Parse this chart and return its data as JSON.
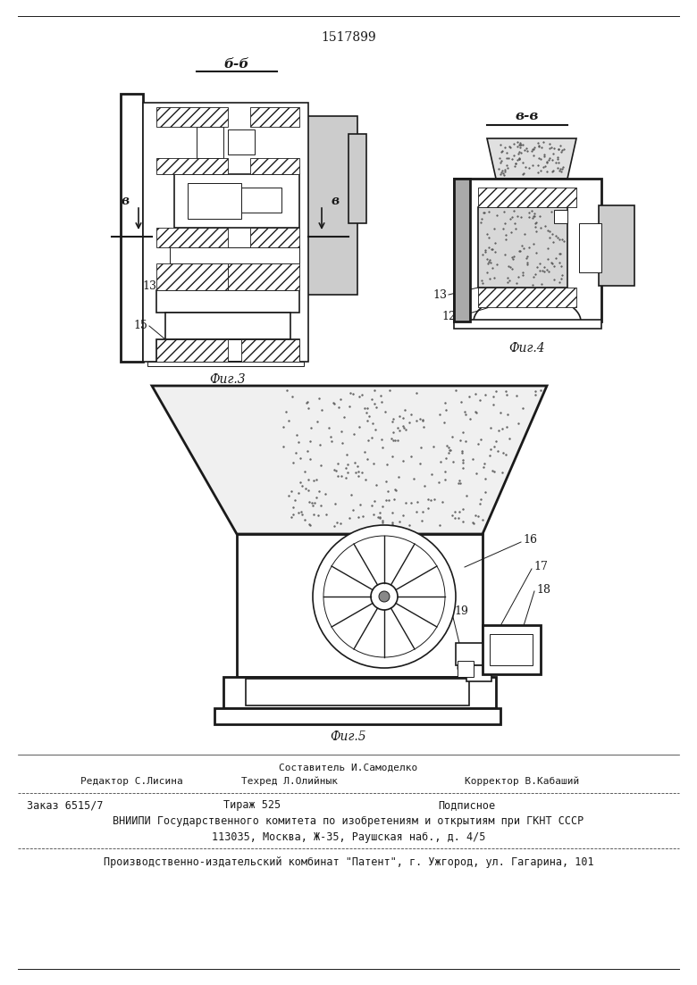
{
  "patent_number": "1517899",
  "fig3_label": "Фиг.3",
  "fig4_label": "Фиг.4",
  "fig5_label": "Фиг.5",
  "section_bb": "б-б",
  "section_vv": "в-в",
  "label_b": "в",
  "footer_line1": "Составитель И.Самоделко",
  "footer_line2_left": "Редактор С.Лисина",
  "footer_line2_mid": "Техред Л.Олийнык",
  "footer_line2_right": "Корректор В.Кабаший",
  "footer_line3_left": "Заказ 6515/7",
  "footer_line3_mid": "Тираж 525",
  "footer_line3_right": "Подписное",
  "footer_line4": "ВНИИПИ Государственного комитета по изобретениям и открытиям при ГКНТ СССР",
  "footer_line5": "113035, Москва, Ж-35, Раушская наб., д. 4/5",
  "footer_line6": "Производственно-издательский комбинат \"Патент\", г. Ужгород, ул. Гагарина, 101",
  "bg_color": "#ffffff",
  "line_color": "#1a1a1a"
}
